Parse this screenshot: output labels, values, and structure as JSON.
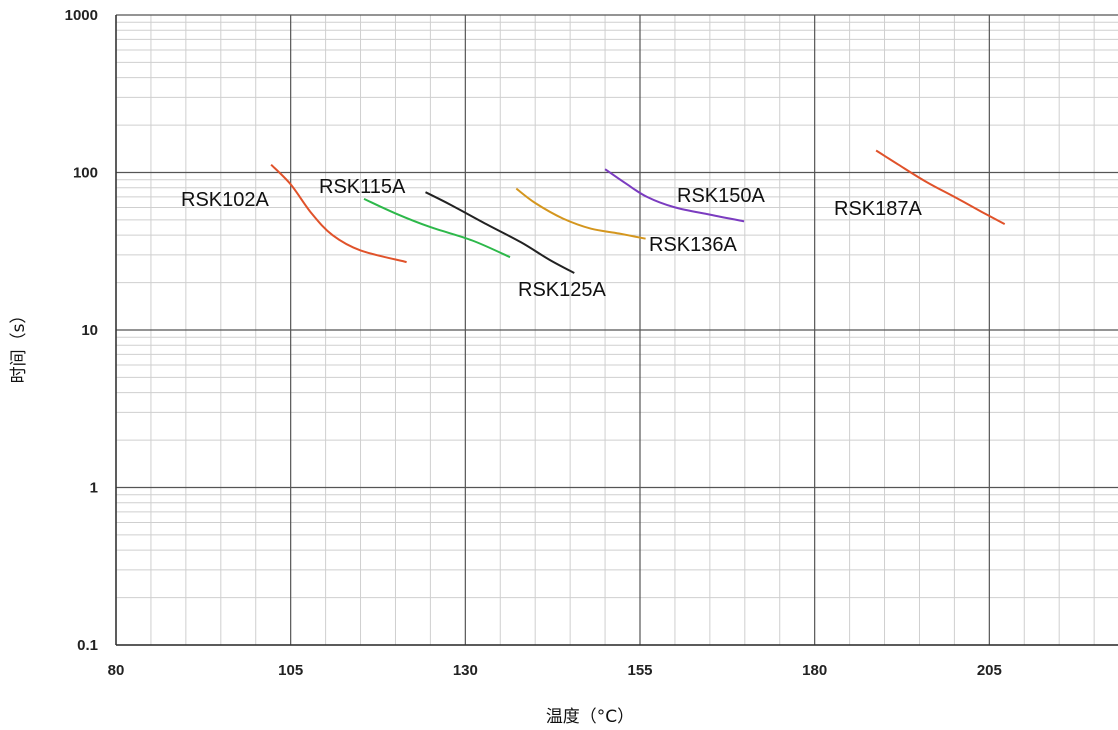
{
  "chart_data": {
    "type": "line",
    "title": "",
    "xlabel": "温度（°C）",
    "ylabel": "时间（s）",
    "xlim": [
      80,
      220
    ],
    "ylim": [
      0.1,
      1000
    ],
    "yscale": "log",
    "xticks": [
      80,
      105,
      130,
      155,
      180,
      205
    ],
    "xtick_labels": [
      "80",
      "105",
      "130",
      "155",
      "180",
      "205"
    ],
    "yticks": [
      0.1,
      1,
      10,
      100,
      1000
    ],
    "ytick_labels": [
      "0.1",
      "1",
      "10",
      "100",
      "1000"
    ],
    "grid": true,
    "series": [
      {
        "name": "RSK102A",
        "color": "#e0522a",
        "points": [
          [
            102.2,
            112
          ],
          [
            105,
            84
          ],
          [
            108,
            55
          ],
          [
            111,
            40
          ],
          [
            115,
            32
          ],
          [
            121.6,
            27
          ]
        ]
      },
      {
        "name": "RSK115A",
        "color": "#2db84a",
        "points": [
          [
            115.5,
            68
          ],
          [
            120,
            55
          ],
          [
            125,
            45
          ],
          [
            131,
            37
          ],
          [
            136.4,
            29
          ]
        ]
      },
      {
        "name": "RSK125A",
        "color": "#222222",
        "points": [
          [
            124.3,
            75
          ],
          [
            128,
            62
          ],
          [
            133,
            47
          ],
          [
            138,
            36
          ],
          [
            142,
            28
          ],
          [
            145.6,
            23
          ]
        ]
      },
      {
        "name": "RSK136A",
        "color": "#d4961e",
        "points": [
          [
            137.3,
            79
          ],
          [
            140,
            64
          ],
          [
            144,
            51
          ],
          [
            148,
            44
          ],
          [
            152,
            41
          ],
          [
            155.8,
            38
          ]
        ]
      },
      {
        "name": "RSK150A",
        "color": "#7b3cc0",
        "points": [
          [
            150,
            105
          ],
          [
            153,
            85
          ],
          [
            156,
            70
          ],
          [
            160,
            60
          ],
          [
            165,
            54
          ],
          [
            169.9,
            49
          ]
        ]
      },
      {
        "name": "RSK187A",
        "color": "#e0522a",
        "points": [
          [
            188.8,
            138
          ],
          [
            192,
            112
          ],
          [
            196,
            87
          ],
          [
            200,
            70
          ],
          [
            204,
            56
          ],
          [
            207.2,
            47
          ]
        ]
      }
    ],
    "annotations": [
      "RSK102A",
      "RSK115A",
      "RSK125A",
      "RSK136A",
      "RSK150A",
      "RSK187A"
    ]
  }
}
